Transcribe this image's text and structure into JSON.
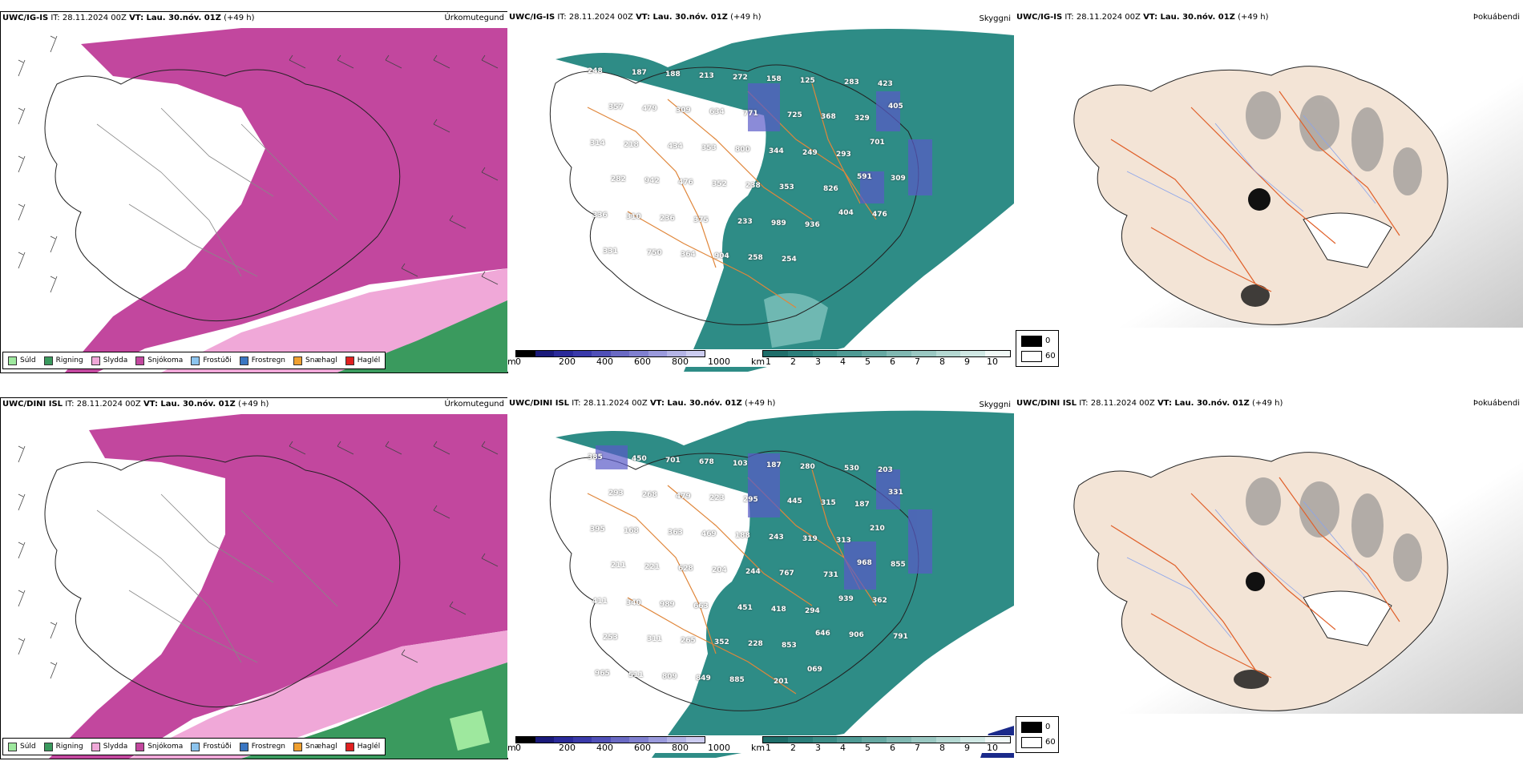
{
  "colors": {
    "rain": "#3a9a5e",
    "drizzle": "#9ee89e",
    "sleet": "#f0a8d8",
    "snow": "#c2479e",
    "frostudi": "#8cc4ee",
    "frostregn": "#3a76c2",
    "snaehagl": "#f0a030",
    "hagl": "#e02020",
    "cloud_teal": "#2e8c86",
    "iceland_fill": "#f3e4d6",
    "roads": "#e0602a",
    "rivers": "#8aa4ec"
  },
  "rows": [
    {
      "precip": {
        "model": "UWC/IG-IS",
        "it": "IT: 28.11.2024 00Z",
        "vt": "VT: Lau. 30.nóv. 01Z",
        "lead": "(+49 h)",
        "title": "Úrkomutegund"
      },
      "cloud": {
        "model": "UWC/IG-IS",
        "it": "IT: 28.11.2024 00Z",
        "vt": "VT: Lau. 30.nóv. 01Z",
        "lead": "(+49 h)",
        "title": "Skyggni",
        "labels": [
          "248",
          "187",
          "188",
          "213",
          "272",
          "158",
          "125",
          "283",
          "423",
          "357",
          "479",
          "309",
          "634",
          "771",
          "725",
          "368",
          "329",
          "405",
          "314",
          "218",
          "434",
          "353",
          "800",
          "344",
          "249",
          "293",
          "701",
          "282",
          "942",
          "476",
          "352",
          "238",
          "353",
          "826",
          "591",
          "309",
          "336",
          "310",
          "236",
          "375",
          "233",
          "989",
          "936",
          "404",
          "476",
          "331",
          "750",
          "364",
          "904",
          "258",
          "254"
        ]
      },
      "fog": {
        "model": "UWC/IG-IS",
        "it": "IT: 28.11.2024 00Z",
        "vt": "VT: Lau. 30.nóv. 01Z",
        "lead": "(+49 h)",
        "title": "Þokuábendi"
      }
    },
    {
      "precip": {
        "model": "UWC/DINI ISL",
        "it": "IT: 28.11.2024 00Z",
        "vt": "VT: Lau. 30.nóv. 01Z",
        "lead": "(+49 h)",
        "title": "Úrkomutegund"
      },
      "cloud": {
        "model": "UWC/DINI ISL",
        "it": "IT: 28.11.2024 00Z",
        "vt": "VT: Lau. 30.nóv. 01Z",
        "lead": "(+49 h)",
        "title": "Skyggni",
        "labels": [
          "385",
          "450",
          "701",
          "678",
          "103",
          "187",
          "280",
          "530",
          "203",
          "293",
          "268",
          "479",
          "223",
          "295",
          "445",
          "315",
          "187",
          "331",
          "395",
          "168",
          "363",
          "469",
          "188",
          "243",
          "319",
          "313",
          "210",
          "211",
          "221",
          "628",
          "204",
          "244",
          "767",
          "731",
          "968",
          "855",
          "411",
          "340",
          "989",
          "663",
          "451",
          "418",
          "294",
          "939",
          "362",
          "253",
          "311",
          "265",
          "352",
          "228",
          "853",
          "646",
          "906",
          "791",
          "965",
          "511",
          "809",
          "849",
          "885",
          "201",
          "069"
        ]
      },
      "fog": {
        "model": "UWC/DINI ISL",
        "it": "IT: 28.11.2024 00Z",
        "vt": "VT: Lau. 30.nóv. 01Z",
        "lead": "(+49 h)",
        "title": "Þokuábendi"
      }
    }
  ],
  "precip_legend": [
    "Súld",
    "Rigning",
    "Slydda",
    "Snjókoma",
    "Frostúði",
    "Frostregn",
    "Snæhagl",
    "Haglél"
  ],
  "cloud_base_scale": {
    "unit": "m",
    "ticks": [
      "0",
      "200",
      "400",
      "600",
      "800",
      "1000"
    ]
  },
  "visibility_scale": {
    "unit": "km",
    "ticks": [
      "1",
      "2",
      "3",
      "4",
      "5",
      "6",
      "7",
      "8",
      "9",
      "10"
    ]
  },
  "fog_scale": {
    "ticks": [
      "0",
      "60"
    ]
  }
}
